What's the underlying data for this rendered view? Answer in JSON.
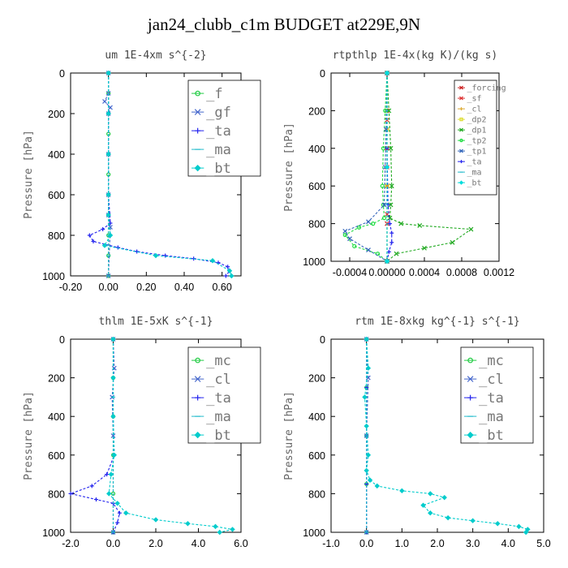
{
  "figure_title": "jan24_clubb_c1m  BUDGET at229E,9N",
  "chart_data": [
    {
      "type": "line",
      "title": "um   1E-4xm s^{-2}",
      "ylabel": "Pressure [hPa]",
      "xlim": [
        -0.2,
        0.7
      ],
      "ylim": [
        1000,
        0
      ],
      "xticks": [
        -0.2,
        0.0,
        0.2,
        0.4,
        0.6
      ],
      "xtick_labels": [
        "-0.20",
        "0.00",
        "0.20",
        "0.40",
        "0.60"
      ],
      "yticks": [
        0,
        200,
        400,
        600,
        800,
        1000
      ],
      "legend_position": "top-right",
      "series": [
        {
          "name": "_f",
          "color": "#22cc44",
          "marker": "circle",
          "x": [
            0,
            0,
            0,
            0,
            0,
            0,
            0,
            0,
            0,
            0,
            0
          ],
          "y": [
            0,
            100,
            200,
            300,
            400,
            500,
            600,
            700,
            800,
            900,
            1000
          ]
        },
        {
          "name": "_gf",
          "color": "#4466cc",
          "marker": "x",
          "x": [
            0,
            0,
            -0.02,
            0.01,
            0,
            0,
            0,
            0,
            0.01,
            0
          ],
          "y": [
            0,
            100,
            140,
            170,
            200,
            400,
            600,
            700,
            760,
            1000
          ]
        },
        {
          "name": "_ta",
          "color": "#2222ee",
          "marker": "plus",
          "x": [
            0,
            0,
            0,
            0,
            0.01,
            -0.03,
            -0.1,
            -0.08,
            0.05,
            0.15,
            0.3,
            0.45,
            0.58,
            0.63,
            0.64,
            0.62
          ],
          "y": [
            0,
            200,
            400,
            600,
            740,
            770,
            800,
            830,
            860,
            880,
            900,
            915,
            935,
            955,
            975,
            1000
          ]
        },
        {
          "name": "_ma",
          "color": "#22bbcc",
          "marker": "dash",
          "x": [
            0,
            0,
            0,
            0,
            0,
            0,
            0
          ],
          "y": [
            0,
            200,
            400,
            600,
            800,
            900,
            1000
          ]
        },
        {
          "name": "_bt",
          "color": "#00cccc",
          "marker": "diamond",
          "x": [
            0,
            0,
            0,
            0,
            0,
            0.01,
            -0.02,
            0.25,
            0.55,
            0.64,
            0.65
          ],
          "y": [
            0,
            200,
            400,
            600,
            700,
            800,
            850,
            900,
            925,
            975,
            1000
          ]
        }
      ]
    },
    {
      "type": "line",
      "title": "rtpthlp   1E-4x(kg K)/(kg s)",
      "ylabel": "Pressure [hPa]",
      "xlim": [
        -0.0006,
        0.0012
      ],
      "ylim": [
        1000,
        0
      ],
      "xticks": [
        -0.0004,
        0.0,
        0.0004,
        0.0008,
        0.0012
      ],
      "xtick_labels": [
        "-0.0004",
        "0.00000",
        "0.0004",
        "0.0008",
        "0.0012"
      ],
      "yticks": [
        0,
        200,
        400,
        600,
        800,
        1000
      ],
      "legend_position": "top-right",
      "series": [
        {
          "name": "_forcing",
          "color": "#cc2222",
          "marker": "x",
          "x": [
            0,
            0,
            0,
            0,
            0,
            0
          ],
          "y": [
            0,
            200,
            400,
            600,
            800,
            1000
          ]
        },
        {
          "name": "_sf",
          "color": "#dd3333",
          "marker": "x",
          "x": [
            0,
            0,
            0,
            0,
            0
          ],
          "y": [
            0,
            250,
            500,
            750,
            1000
          ]
        },
        {
          "name": "_cl",
          "color": "#ddaa33",
          "marker": "plus",
          "x": [
            0,
            0,
            0,
            0
          ],
          "y": [
            0,
            300,
            600,
            1000
          ]
        },
        {
          "name": "_dp2",
          "color": "#dddd33",
          "marker": "square",
          "x": [
            0,
            0,
            0,
            0
          ],
          "y": [
            0,
            300,
            600,
            1000
          ]
        },
        {
          "name": "_dp1",
          "color": "#22aa22",
          "marker": "x",
          "x": [
            0,
            2e-05,
            4e-05,
            5e-05,
            4e-05,
            3e-05,
            0.00015,
            0.00035,
            0.0009,
            0.0007,
            0.0004,
            0.0001,
            0
          ],
          "y": [
            0,
            200,
            400,
            600,
            700,
            770,
            800,
            810,
            830,
            900,
            930,
            960,
            1000
          ]
        },
        {
          "name": "_tp2",
          "color": "#22dd44",
          "marker": "circle",
          "x": [
            0,
            -2e-05,
            -4e-05,
            -5e-05,
            -4e-05,
            -3e-05,
            -0.00015,
            -0.0003,
            -0.00045,
            -0.00035,
            -0.0001,
            0
          ],
          "y": [
            0,
            200,
            400,
            600,
            700,
            770,
            800,
            820,
            860,
            920,
            960,
            1000
          ]
        },
        {
          "name": "_tp1",
          "color": "#3366bb",
          "marker": "x",
          "x": [
            0,
            -1e-05,
            -2e-05,
            -3e-05,
            -0.0002,
            -0.00045,
            -0.0004,
            -0.0002,
            0
          ],
          "y": [
            0,
            300,
            500,
            700,
            790,
            840,
            880,
            940,
            1000
          ]
        },
        {
          "name": "_ta",
          "color": "#2222ee",
          "marker": "plus",
          "x": [
            0,
            0,
            1e-05,
            3e-05,
            5e-05,
            5e-05,
            2e-05,
            0
          ],
          "y": [
            0,
            400,
            700,
            800,
            850,
            900,
            950,
            1000
          ]
        },
        {
          "name": "_ma",
          "color": "#22bbcc",
          "marker": "dash",
          "x": [
            0,
            0,
            0
          ],
          "y": [
            0,
            500,
            1000
          ]
        },
        {
          "name": "_bt",
          "color": "#00dddd",
          "marker": "diamond",
          "x": [
            0,
            0,
            0
          ],
          "y": [
            0,
            500,
            1000
          ]
        }
      ]
    },
    {
      "type": "line",
      "title": "thlm   1E-5xK s^{-1}",
      "ylabel": "Pressure [hPa]",
      "xlim": [
        -2.0,
        6.0
      ],
      "ylim": [
        1000,
        0
      ],
      "xticks": [
        -2.0,
        0.0,
        2.0,
        4.0,
        6.0
      ],
      "xtick_labels": [
        "-2.0",
        "0.0",
        "2.0",
        "4.0",
        "6.0"
      ],
      "yticks": [
        0,
        200,
        400,
        600,
        800,
        1000
      ],
      "legend_position": "top-right",
      "series": [
        {
          "name": "_mc",
          "color": "#22cc44",
          "marker": "circle",
          "x": [
            0,
            0,
            0,
            0,
            0,
            0
          ],
          "y": [
            0,
            200,
            400,
            600,
            800,
            1000
          ]
        },
        {
          "name": "_cl",
          "color": "#4466cc",
          "marker": "x",
          "x": [
            0,
            0.05,
            -0.05,
            0,
            0
          ],
          "y": [
            0,
            150,
            300,
            500,
            1000
          ]
        },
        {
          "name": "_ta",
          "color": "#2222ee",
          "marker": "plus",
          "x": [
            0,
            0,
            0,
            0.05,
            -0.3,
            -1.0,
            -2.0,
            -0.8,
            0.0,
            0.3,
            0.2,
            0
          ],
          "y": [
            0,
            200,
            400,
            600,
            700,
            760,
            800,
            830,
            850,
            900,
            950,
            1000
          ]
        },
        {
          "name": "_ma",
          "color": "#22bbcc",
          "marker": "dash",
          "x": [
            0,
            0,
            0,
            0
          ],
          "y": [
            0,
            300,
            600,
            1000
          ]
        },
        {
          "name": "_bt",
          "color": "#00cccc",
          "marker": "diamond",
          "x": [
            0,
            0,
            0,
            0.05,
            -0.1,
            -0.2,
            0.2,
            0.6,
            2.0,
            3.5,
            4.8,
            5.6,
            5.0
          ],
          "y": [
            0,
            200,
            400,
            600,
            700,
            800,
            850,
            900,
            935,
            955,
            970,
            985,
            1000
          ]
        }
      ]
    },
    {
      "type": "line",
      "title": "rtm   1E-8xkg kg^{-1} s^{-1}",
      "ylabel": "Pressure [hPa]",
      "xlim": [
        -1.0,
        5.0
      ],
      "ylim": [
        1000,
        0
      ],
      "xticks": [
        -1.0,
        0.0,
        1.0,
        2.0,
        3.0,
        4.0,
        5.0
      ],
      "xtick_labels": [
        "-1.0",
        "0.0",
        "1.0",
        "2.0",
        "3.0",
        "4.0",
        "5.0"
      ],
      "yticks": [
        0,
        200,
        400,
        600,
        800,
        1000
      ],
      "legend_position": "top-right",
      "series": [
        {
          "name": "_mc",
          "color": "#22cc44",
          "marker": "circle",
          "x": [
            0,
            0,
            0,
            0,
            0
          ],
          "y": [
            0,
            250,
            500,
            750,
            1000
          ]
        },
        {
          "name": "_cl",
          "color": "#4466cc",
          "marker": "x",
          "x": [
            0,
            0.05,
            0,
            0
          ],
          "y": [
            0,
            200,
            500,
            1000
          ]
        },
        {
          "name": "_ta",
          "color": "#2222ee",
          "marker": "plus",
          "x": [
            0,
            0,
            0,
            0,
            0
          ],
          "y": [
            0,
            250,
            500,
            750,
            1000
          ]
        },
        {
          "name": "_ma",
          "color": "#22bbcc",
          "marker": "dash",
          "x": [
            0,
            0,
            0
          ],
          "y": [
            0,
            500,
            1000
          ]
        },
        {
          "name": "_bt",
          "color": "#00cccc",
          "marker": "diamond",
          "x": [
            0,
            0.05,
            -0.05,
            0,
            0.05,
            0,
            0.1,
            0.3,
            1.0,
            1.8,
            2.2,
            1.6,
            1.8,
            2.3,
            3.0,
            3.7,
            4.3,
            4.55,
            4.5
          ],
          "y": [
            0,
            150,
            300,
            450,
            600,
            680,
            730,
            760,
            785,
            800,
            820,
            860,
            900,
            925,
            940,
            955,
            970,
            985,
            1000
          ]
        }
      ]
    }
  ]
}
